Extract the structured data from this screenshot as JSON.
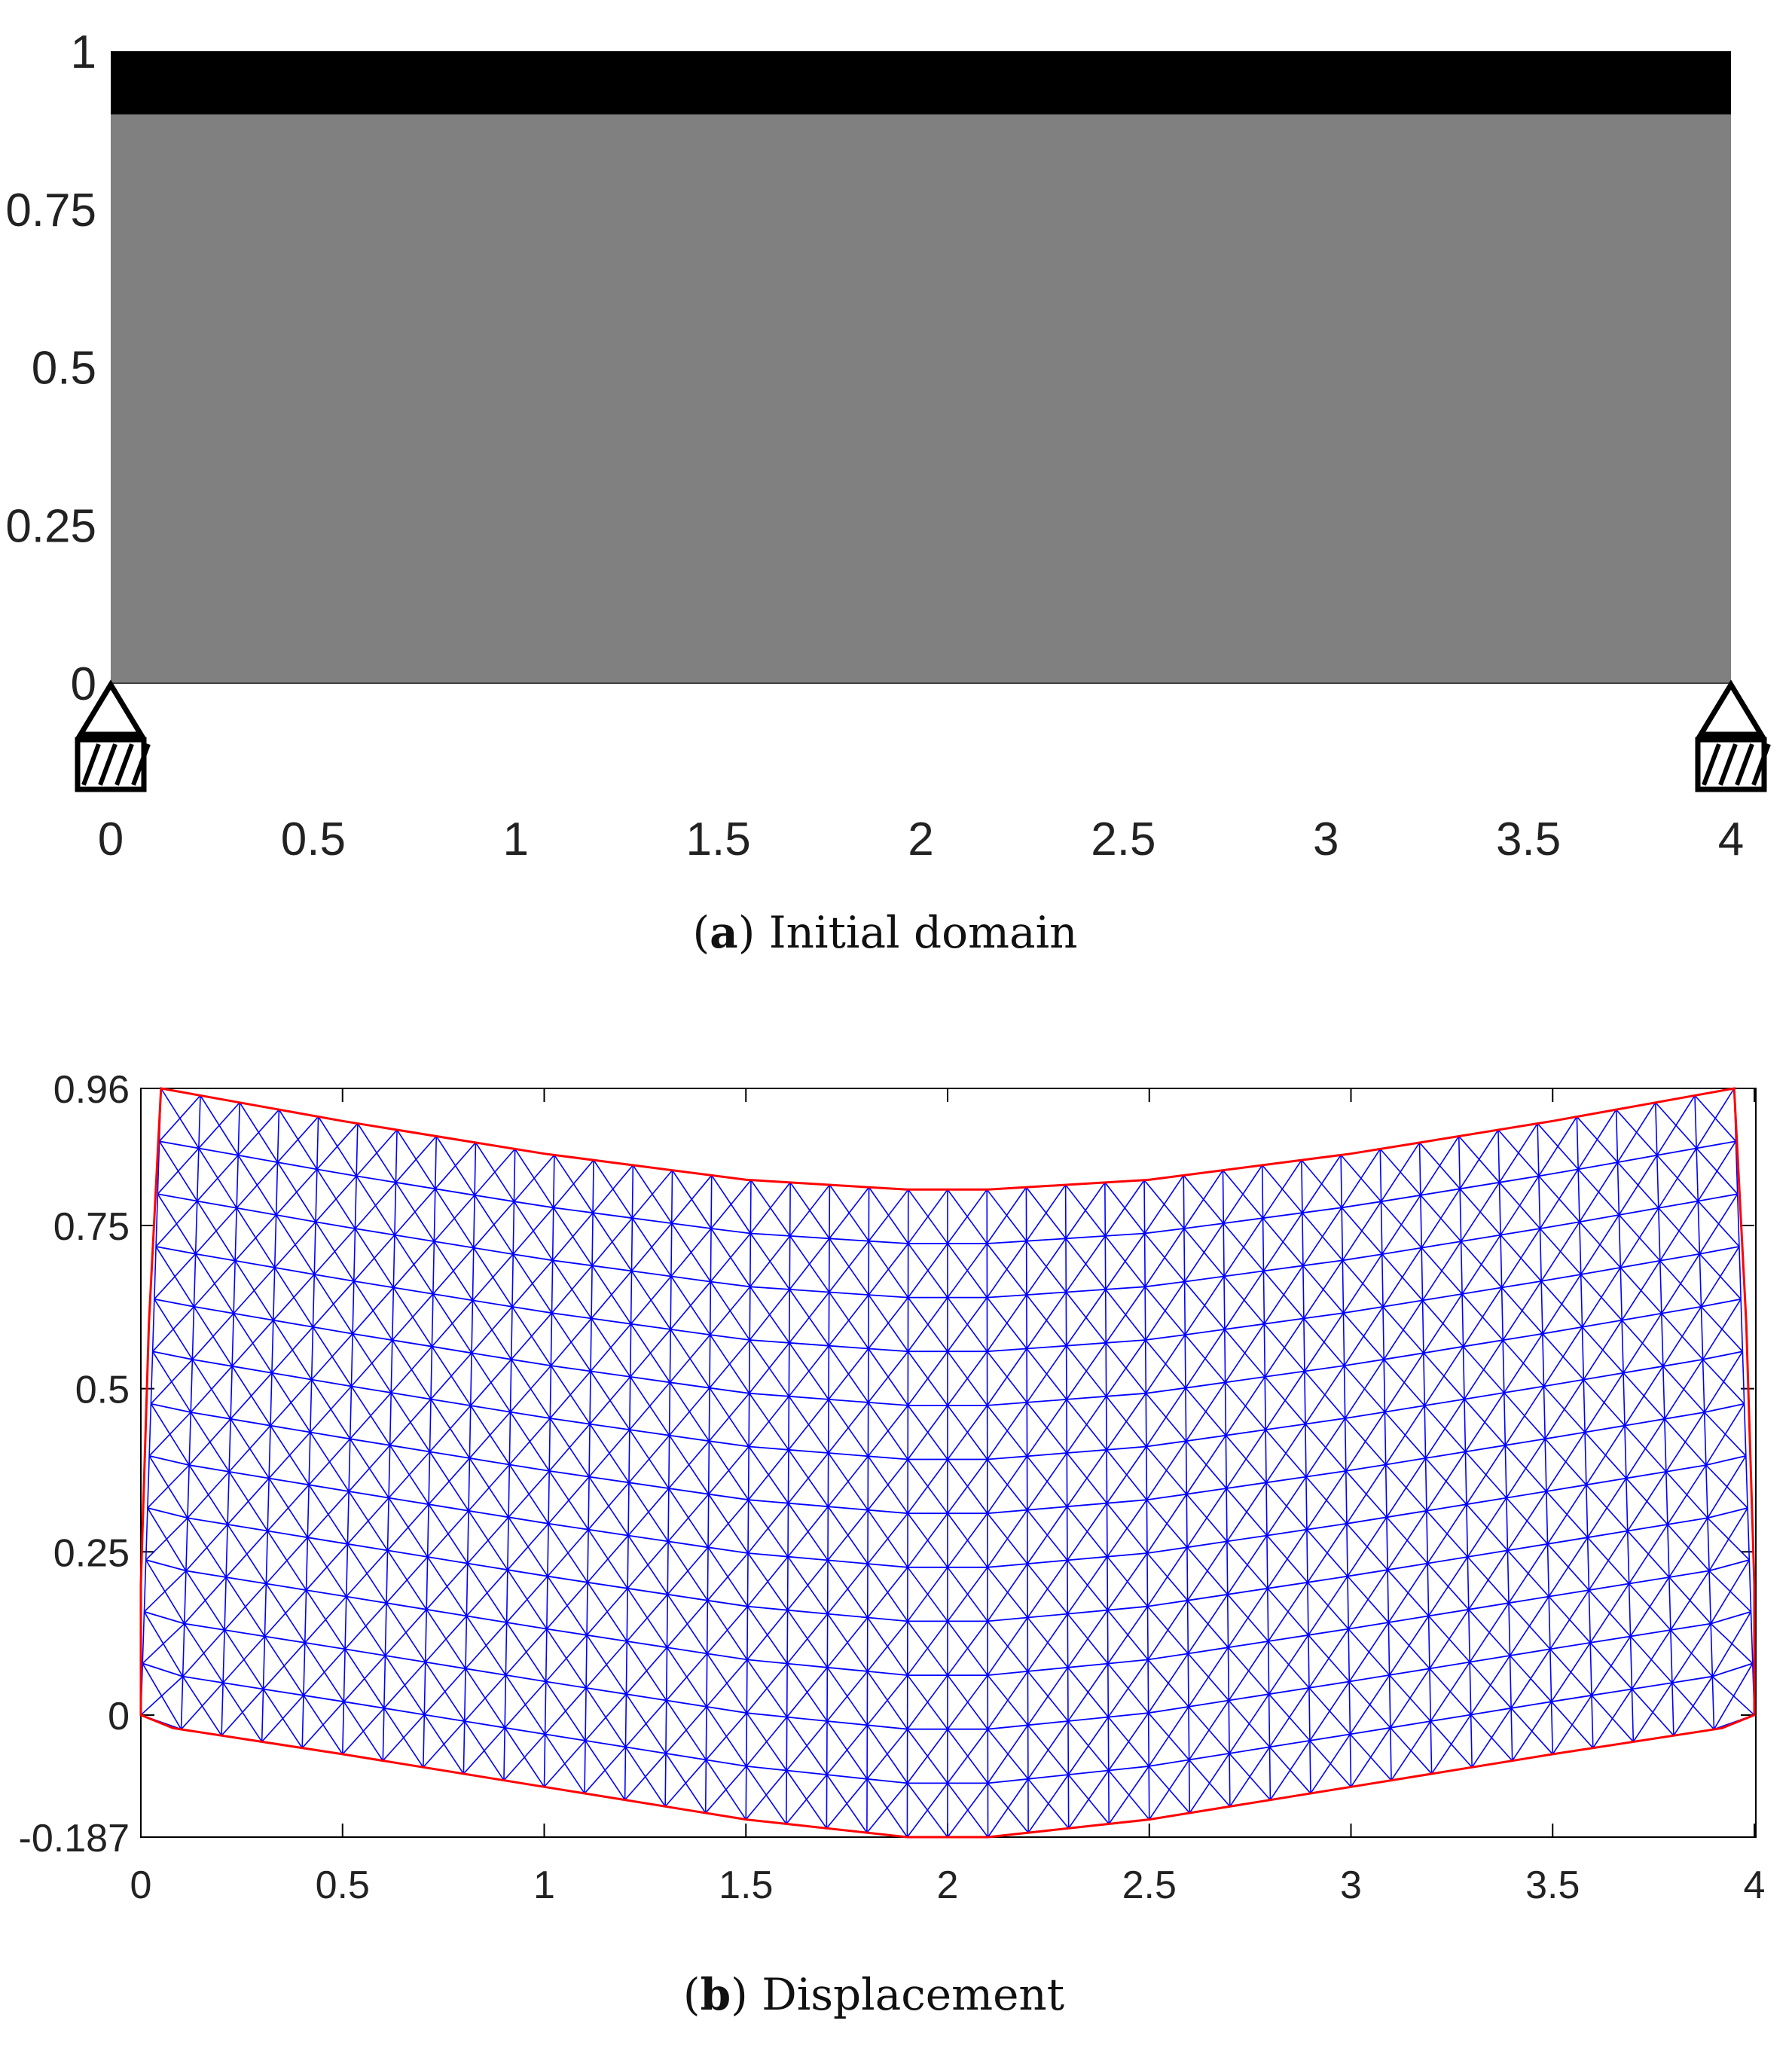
{
  "figure": {
    "caption_a": {
      "open": "(",
      "letter": "a",
      "close": ")",
      "text": " Initial domain"
    },
    "caption_b": {
      "open": "(",
      "letter": "b",
      "close": ")",
      "text": " Displacement"
    }
  },
  "chart_data": [
    {
      "type": "area",
      "title": "",
      "xlabel": "",
      "ylabel": "",
      "xlim": [
        0,
        4
      ],
      "ylim": [
        0,
        1
      ],
      "x_ticks": [
        "0",
        "0.5",
        "1",
        "1.5",
        "2",
        "2.5",
        "3",
        "3.5",
        "4"
      ],
      "y_ticks": [
        "0",
        "0.25",
        "0.5",
        "0.75",
        "1"
      ],
      "regions": [
        {
          "x": [
            0,
            4
          ],
          "y": [
            0,
            0.9
          ],
          "color": "#808080"
        },
        {
          "x": [
            0,
            4
          ],
          "y": [
            0.9,
            1
          ],
          "color": "#000000"
        }
      ],
      "supports": [
        {
          "x": 0,
          "y": 0,
          "kind": "pin"
        },
        {
          "x": 4,
          "y": 0,
          "kind": "pin"
        }
      ],
      "grid": false
    },
    {
      "type": "line",
      "title": "",
      "xlabel": "",
      "ylabel": "",
      "xlim": [
        0,
        4
      ],
      "ylim": [
        -0.187,
        0.96
      ],
      "x_ticks": [
        "0",
        "0.5",
        "1",
        "1.5",
        "2",
        "2.5",
        "3",
        "3.5",
        "4"
      ],
      "y_ticks": [
        "-0.187",
        "0",
        "0.25",
        "0.5",
        "0.75",
        "0.96"
      ],
      "mesh": {
        "columns": 40,
        "rows": 12,
        "mesh_color": "#0000ff",
        "boundary_color": "#ff0000"
      },
      "boundary": {
        "top": [
          [
            0.05,
            0.96
          ],
          [
            0.5,
            0.91
          ],
          [
            1,
            0.86
          ],
          [
            1.5,
            0.82
          ],
          [
            1.9,
            0.805
          ],
          [
            2,
            0.805
          ],
          [
            2.1,
            0.805
          ],
          [
            2.5,
            0.82
          ],
          [
            3,
            0.86
          ],
          [
            3.5,
            0.91
          ],
          [
            3.95,
            0.96
          ]
        ],
        "bottom": [
          [
            0,
            0
          ],
          [
            0.08,
            -0.02
          ],
          [
            0.5,
            -0.06
          ],
          [
            1,
            -0.11
          ],
          [
            1.5,
            -0.16
          ],
          [
            1.9,
            -0.187
          ],
          [
            2.1,
            -0.187
          ],
          [
            2.5,
            -0.16
          ],
          [
            3,
            -0.11
          ],
          [
            3.5,
            -0.06
          ],
          [
            3.92,
            -0.02
          ],
          [
            4,
            0
          ]
        ],
        "left": [
          [
            0.05,
            0.96
          ],
          [
            0.02,
            0.6
          ],
          [
            0.0,
            0.2
          ],
          [
            0,
            0
          ]
        ],
        "right": [
          [
            3.95,
            0.96
          ],
          [
            3.98,
            0.6
          ],
          [
            4.0,
            0.2
          ],
          [
            4,
            0
          ]
        ]
      },
      "grid": false
    }
  ]
}
